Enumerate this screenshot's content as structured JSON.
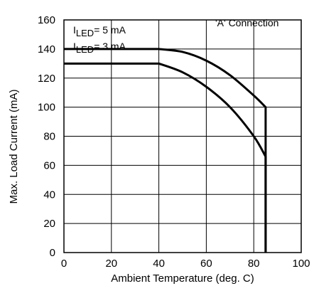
{
  "chart_data": {
    "type": "line",
    "xlabel": "Ambient Temperature (deg. C)",
    "ylabel": "Max. Load Current (mA)",
    "xlim": [
      0,
      100
    ],
    "ylim": [
      0,
      160
    ],
    "x_ticks": [
      0,
      20,
      40,
      60,
      80,
      100
    ],
    "y_ticks": [
      0,
      20,
      40,
      60,
      80,
      100,
      120,
      140,
      160
    ],
    "grid": "on",
    "annotation": "'A' Connection",
    "series": [
      {
        "name_parts": [
          "I",
          "LED",
          "= 5 mA"
        ],
        "x": [
          0,
          40,
          50,
          60,
          70,
          80,
          85,
          85
        ],
        "y": [
          140,
          140,
          138,
          132,
          122,
          108,
          100,
          0
        ]
      },
      {
        "name_parts": [
          "I",
          "LED",
          "= 3 mA"
        ],
        "x": [
          0,
          40,
          50,
          60,
          70,
          80,
          85,
          85
        ],
        "y": [
          130,
          130,
          124,
          114,
          100,
          80,
          66,
          0
        ]
      }
    ]
  }
}
